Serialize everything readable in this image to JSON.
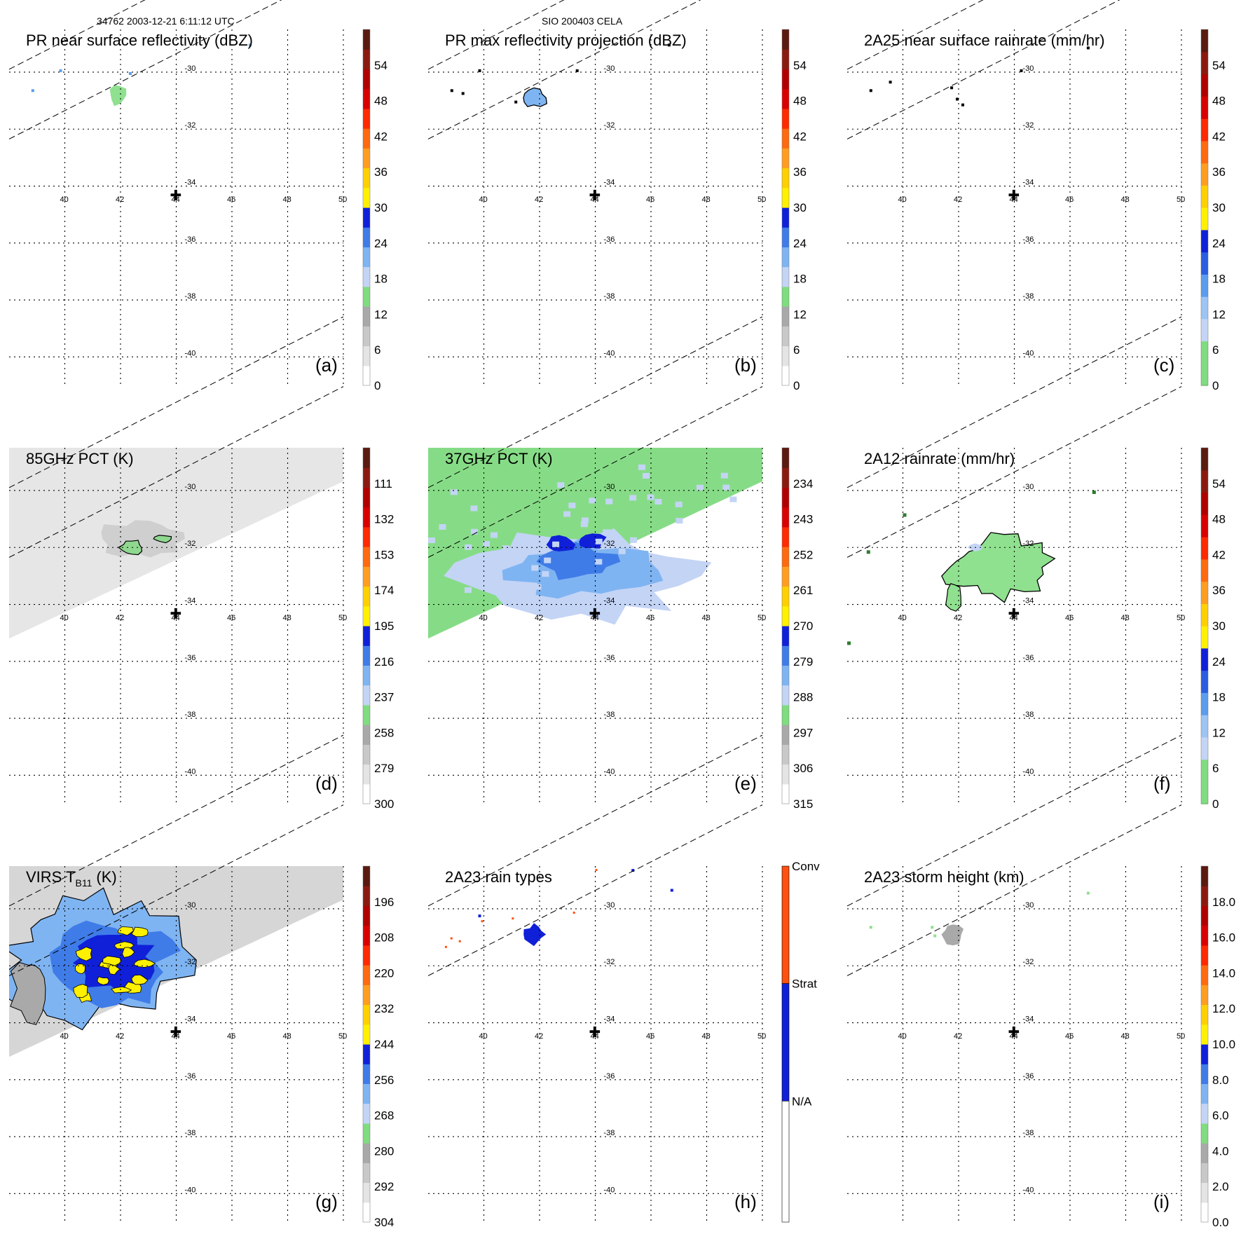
{
  "header": {
    "left": "34762 2003-12-21 6:11:12 UTC",
    "center": "SIO 200403 CELA"
  },
  "map": {
    "lon_ticks": [
      "40",
      "42",
      "44",
      "46",
      "48",
      "50"
    ],
    "lat_ticks": [
      "-30",
      "-32",
      "-34",
      "-36",
      "-38",
      "-40"
    ],
    "lon_range": [
      38,
      50
    ],
    "lat_range": [
      -41,
      -28.5
    ],
    "site_marker": {
      "lon": 44,
      "lat": -34.3,
      "symbol": "✚"
    }
  },
  "chart_data": [
    {
      "id": "a",
      "type": "heatmap",
      "title": "PR near surface reflectivity (dBZ)",
      "panel_label": "(a)",
      "colorbar": {
        "labels": [
          "54",
          "48",
          "42",
          "36",
          "30",
          "24",
          "18",
          "12",
          "6",
          "0"
        ]
      }
    },
    {
      "id": "b",
      "type": "heatmap",
      "title": "PR max reflectivity projection (dBZ)",
      "panel_label": "(b)",
      "colorbar": {
        "labels": [
          "54",
          "48",
          "42",
          "36",
          "30",
          "24",
          "18",
          "12",
          "6",
          "0"
        ]
      }
    },
    {
      "id": "c",
      "type": "heatmap",
      "title": "2A25 near surface rainrate (mm/hr)",
      "panel_label": "(c)",
      "colorbar": {
        "labels": [
          "54",
          "48",
          "42",
          "36",
          "30",
          "24",
          "18",
          "12",
          "6",
          "0"
        ]
      }
    },
    {
      "id": "d",
      "type": "heatmap",
      "title": "85GHz PCT (K)",
      "panel_label": "(d)",
      "colorbar": {
        "labels": [
          "111",
          "132",
          "153",
          "174",
          "195",
          "216",
          "237",
          "258",
          "279",
          "300"
        ]
      }
    },
    {
      "id": "e",
      "type": "heatmap",
      "title": "37GHz PCT (K)",
      "panel_label": "(e)",
      "colorbar": {
        "labels": [
          "234",
          "243",
          "252",
          "261",
          "270",
          "279",
          "288",
          "297",
          "306",
          "315"
        ]
      }
    },
    {
      "id": "f",
      "type": "heatmap",
      "title": "2A12 rainrate (mm/hr)",
      "panel_label": "(f)",
      "colorbar": {
        "labels": [
          "54",
          "48",
          "42",
          "36",
          "30",
          "24",
          "18",
          "12",
          "6",
          "0"
        ]
      }
    },
    {
      "id": "g",
      "type": "heatmap",
      "title": "VIRS T",
      "title_sub": "B11",
      "title_after": "(K)",
      "panel_label": "(g)",
      "colorbar": {
        "labels": [
          "196",
          "208",
          "220",
          "232",
          "244",
          "256",
          "268",
          "280",
          "292",
          "304"
        ]
      }
    },
    {
      "id": "h",
      "type": "heatmap",
      "title": "2A23 rain types",
      "panel_label": "(h)",
      "colorbar": {
        "labels": [
          "Conv",
          "Strat",
          "N/A"
        ]
      }
    },
    {
      "id": "i",
      "type": "heatmap",
      "title": "2A23 storm height (km)",
      "panel_label": "(i)",
      "colorbar": {
        "labels": [
          "18.0",
          "16.0",
          "14.0",
          "12.0",
          "10.0",
          "8.0",
          "6.0",
          "4.0",
          "2.0",
          "0.0"
        ]
      }
    }
  ],
  "colors": {
    "ramp_dbz": [
      "#ffffff",
      "#e4e4e4",
      "#c8c8c8",
      "#a9a9a9",
      "#7fdc7f",
      "#c3d4f5",
      "#7fb4f2",
      "#3f7ce8",
      "#1020d8",
      "#fff000",
      "#ffd000",
      "#ff9d20",
      "#ff6a10",
      "#ff2a00",
      "#d80000",
      "#b00000",
      "#8a1a10",
      "#5a1a10"
    ],
    "ramp_rain": [
      "#7fdc7f",
      "#7fdc7f",
      "#c3d4f5",
      "#9cc4f4",
      "#5a9cee",
      "#2a5ee0",
      "#1020d8",
      "#fff000",
      "#ffd000",
      "#ff9d20",
      "#ff6a10",
      "#ff2a00",
      "#d80000",
      "#b00000",
      "#8a1a10",
      "#5a1a10"
    ],
    "ramp_storm": [
      "#ffffff",
      "#e4e4e4",
      "#c8c8c8",
      "#a9a9a9",
      "#7fdc7f",
      "#c3d4f5",
      "#7fb4f2",
      "#3f7ce8",
      "#1020d8",
      "#fff000",
      "#ffd000",
      "#ff9d20",
      "#ff6a10",
      "#ff2a00",
      "#d80000",
      "#b00000",
      "#8a1a10",
      "#5a1a10"
    ],
    "rain_types": [
      "#ff5010",
      "#1020d8",
      "#ffffff"
    ],
    "pct_background": "#e6e6e6",
    "pct37_background": "#86dc86",
    "virs_cold": "#fff000"
  }
}
